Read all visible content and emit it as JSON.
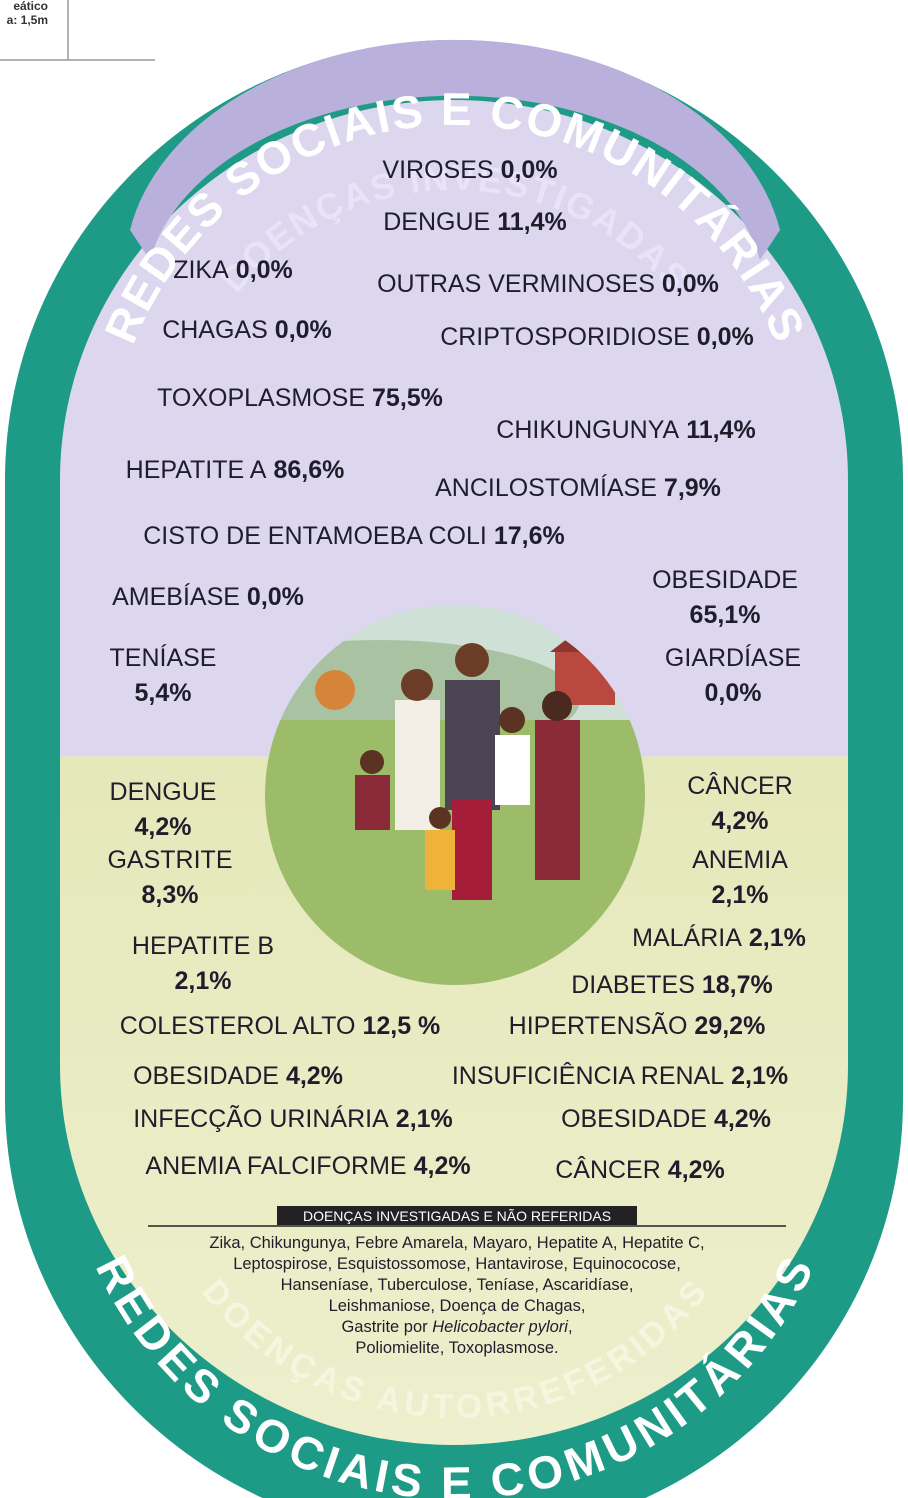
{
  "corner": {
    "line1": "eático",
    "line2": "a: 1,5m"
  },
  "ring": {
    "top": "REDES SOCIAIS E COMUNITÁRIAS",
    "bottom": "REDES SOCIAIS E COMUNITÁRIAS"
  },
  "investigated": {
    "title": "DOENÇAS INVESTIGADAS",
    "items": [
      {
        "name": "VIROSES",
        "value": "0,0%"
      },
      {
        "name": "DENGUE",
        "value": "11,4%"
      },
      {
        "name": "ZIKA",
        "value": "0,0%"
      },
      {
        "name": "OUTRAS VERMINOSES",
        "value": "0,0%"
      },
      {
        "name": "CHAGAS",
        "value": "0,0%"
      },
      {
        "name": "CRIPTOSPORIDIOSE",
        "value": "0,0%"
      },
      {
        "name": "TOXOPLASMOSE",
        "value": "75,5%"
      },
      {
        "name": "CHIKUNGUNYA",
        "value": "11,4%"
      },
      {
        "name": "HEPATITE A",
        "value": "86,6%"
      },
      {
        "name": "ANCILOSTOMÍASE",
        "value": "7,9%"
      },
      {
        "name": "CISTO DE ENTAMOEBA COLI",
        "value": "17,6%"
      },
      {
        "name": "AMEBÍASE",
        "value": "0,0%"
      },
      {
        "name": "OBESIDADE",
        "value": "65,1%"
      },
      {
        "name": "TENÍASE",
        "value": "5,4%"
      },
      {
        "name": "GIARDÍASE",
        "value": "0,0%"
      }
    ]
  },
  "self_reported": {
    "title": "DOENÇAS AUTORREFERIDAS",
    "items": [
      {
        "name": "DENGUE",
        "value": "4,2%"
      },
      {
        "name": "CÂNCER",
        "value": "4,2%"
      },
      {
        "name": "GASTRITE",
        "value": "8,3%"
      },
      {
        "name": "ANEMIA",
        "value": "2,1%"
      },
      {
        "name": "HEPATITE B",
        "value": "2,1%"
      },
      {
        "name": "MALÁRIA",
        "value": "2,1%"
      },
      {
        "name": "DIABETES",
        "value": "18,7%"
      },
      {
        "name": "COLESTEROL ALTO",
        "value": "12,5 %"
      },
      {
        "name": "HIPERTENSÃO",
        "value": "29,2%"
      },
      {
        "name": "OBESIDADE",
        "value": "4,2%"
      },
      {
        "name": "INSUFICIÊNCIA RENAL",
        "value": "2,1%"
      },
      {
        "name": "INFECÇÃO URINÁRIA",
        "value": "2,1%"
      },
      {
        "name": "OBESIDADE",
        "value": "4,2%"
      },
      {
        "name": "ANEMIA FALCIFORME",
        "value": "4,2%"
      },
      {
        "name": "CÂNCER",
        "value": "4,2%"
      }
    ]
  },
  "not_reported": {
    "title": "DOENÇAS INVESTIGADAS E NÃO REFERIDAS",
    "lines": [
      "Zika, Chikungunya, Febre Amarela, Mayaro, Hepatite A, Hepatite C,",
      "Leptospirose, Esquistossomose, Hantavirose, Equinococose,",
      "Hanseníase, Tuberculose, Teníase, Ascaridíase,",
      "Leishmaniose, Doença de Chagas,",
      {
        "text": "Gastrite por ",
        "italic": "Helicobacter pylori",
        "after": ","
      },
      "Poliomielite, Toxoplasmose."
    ]
  }
}
